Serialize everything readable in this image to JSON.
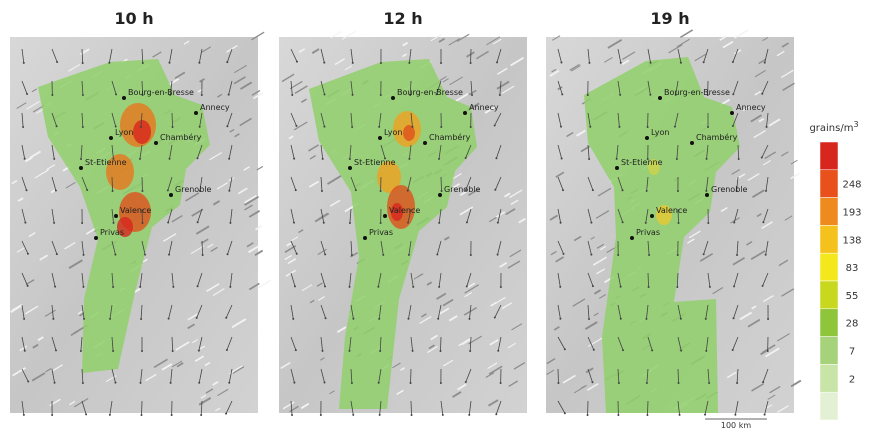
{
  "panels": [
    {
      "title": "10 h"
    },
    {
      "title": "12 h"
    },
    {
      "title": "19 h"
    }
  ],
  "cities": [
    "Bourg-en-Bresse",
    "Annecy",
    "Lyon",
    "Chambéry",
    "St-Etienne",
    "Grenoble",
    "Valence",
    "Privas"
  ],
  "legend": {
    "title": "grains/m",
    "superscript": "3",
    "labels": [
      248,
      193,
      138,
      83,
      55,
      28,
      7,
      2
    ]
  },
  "scale": "100 km"
}
